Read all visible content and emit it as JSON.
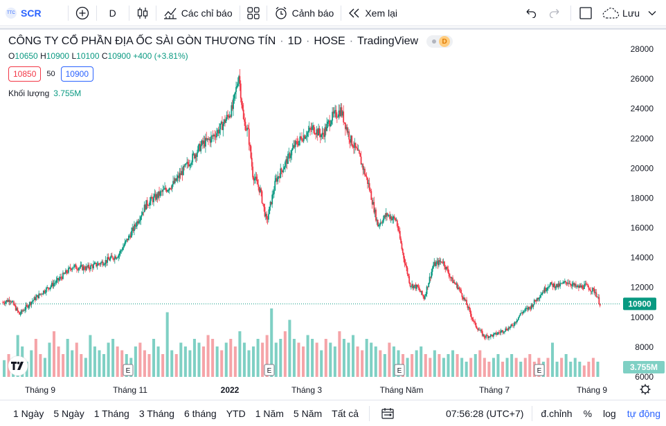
{
  "toolbar": {
    "symbol": "SCR",
    "symbol_logo_text": "TTC",
    "interval": "D",
    "indicators_label": "Các chỉ báo",
    "alert_label": "Cảnh báo",
    "replay_label": "Xem lại",
    "save_label": "Lưu"
  },
  "legend": {
    "company": "CÔNG TY CỔ PHẦN ĐỊA ỐC SÀI GÒN THƯƠNG TÍN",
    "interval": "1D",
    "exchange": "HOSE",
    "source": "TradingView",
    "badge": "D",
    "ohlc": {
      "o_label": "O",
      "o": "10650",
      "h_label": "H",
      "h": "10900",
      "l_label": "L",
      "l": "10100",
      "c_label": "C",
      "c": "10900",
      "change": "+400 (+3.81%)"
    },
    "bid": "10850",
    "spread": "50",
    "ask": "10900",
    "volume_label": "Khối lượng",
    "volume": "3.755M"
  },
  "colors": {
    "up": "#089981",
    "down": "#f23645",
    "up_vol": "#7fd0c4",
    "down_vol": "#f5a4a8",
    "accent": "#2962ff"
  },
  "chart_data": {
    "type": "candlestick",
    "title": "CÔNG TY CỔ PHẦN ĐỊA ỐC SÀI GÒN THƯƠNG TÍN · 1D · HOSE",
    "ylim": [
      6000,
      29000
    ],
    "y_ticks": [
      "28000",
      "26000",
      "24000",
      "22000",
      "20000",
      "18000",
      "16000",
      "14000",
      "12000",
      "10000",
      "8000",
      "6000"
    ],
    "x_ticks": [
      "Tháng 9",
      "Tháng 11",
      "2022",
      "Tháng 3",
      "Tháng Năm",
      "Tháng 7",
      "Tháng 9"
    ],
    "last_price": "10900",
    "last_volume": "3.755M",
    "events": [
      "E",
      "E",
      "E",
      "E"
    ],
    "price_path": [
      [
        0,
        11000
      ],
      [
        8,
        11200
      ],
      [
        18,
        10200
      ],
      [
        30,
        11000
      ],
      [
        45,
        11800
      ],
      [
        60,
        12500
      ],
      [
        75,
        13400
      ],
      [
        90,
        13300
      ],
      [
        100,
        13500
      ],
      [
        112,
        13800
      ],
      [
        125,
        14200
      ],
      [
        140,
        15800
      ],
      [
        155,
        17600
      ],
      [
        170,
        18300
      ],
      [
        185,
        19000
      ],
      [
        200,
        20300
      ],
      [
        215,
        21600
      ],
      [
        225,
        22000
      ],
      [
        235,
        22700
      ],
      [
        240,
        23200
      ],
      [
        248,
        24000
      ],
      [
        255,
        26300
      ],
      [
        260,
        23200
      ],
      [
        265,
        22400
      ],
      [
        270,
        19600
      ],
      [
        278,
        18500
      ],
      [
        285,
        16400
      ],
      [
        295,
        19200
      ],
      [
        305,
        20300
      ],
      [
        315,
        21500
      ],
      [
        325,
        22200
      ],
      [
        335,
        22700
      ],
      [
        345,
        22200
      ],
      [
        355,
        23400
      ],
      [
        365,
        23900
      ],
      [
        375,
        22000
      ],
      [
        385,
        20800
      ],
      [
        395,
        18900
      ],
      [
        405,
        16200
      ],
      [
        415,
        16900
      ],
      [
        425,
        16500
      ],
      [
        432,
        14300
      ],
      [
        440,
        12200
      ],
      [
        448,
        12000
      ],
      [
        455,
        11300
      ],
      [
        465,
        13500
      ],
      [
        475,
        13800
      ],
      [
        485,
        12500
      ],
      [
        492,
        12000
      ],
      [
        500,
        11000
      ],
      [
        510,
        9500
      ],
      [
        520,
        8700
      ],
      [
        530,
        8800
      ],
      [
        540,
        9100
      ],
      [
        550,
        9400
      ],
      [
        560,
        10300
      ],
      [
        570,
        10700
      ],
      [
        580,
        11500
      ],
      [
        590,
        12200
      ],
      [
        600,
        12100
      ],
      [
        610,
        12400
      ],
      [
        620,
        12000
      ],
      [
        630,
        12100
      ],
      [
        640,
        11700
      ],
      [
        645,
        10900
      ]
    ],
    "volumes": [
      0.22,
      0.3,
      0.25,
      0.55,
      0.4,
      0.2,
      0.35,
      0.5,
      0.3,
      0.25,
      0.45,
      0.6,
      0.4,
      0.3,
      0.5,
      0.35,
      0.45,
      0.3,
      0.25,
      0.55,
      0.4,
      0.35,
      0.3,
      0.45,
      0.5,
      0.4,
      0.35,
      0.3,
      0.25,
      0.4,
      0.45,
      0.35,
      0.3,
      0.5,
      0.4,
      0.3,
      0.85,
      0.35,
      0.3,
      0.45,
      0.4,
      0.35,
      0.5,
      0.45,
      0.4,
      0.55,
      0.5,
      0.4,
      0.35,
      0.45,
      0.5,
      0.4,
      0.6,
      0.45,
      0.35,
      0.4,
      0.5,
      0.45,
      0.55,
      0.9,
      0.45,
      0.5,
      0.6,
      0.75,
      0.5,
      0.45,
      0.4,
      0.55,
      0.5,
      0.45,
      0.35,
      0.5,
      0.45,
      0.4,
      0.6,
      0.5,
      0.45,
      0.55,
      0.4,
      0.35,
      0.5,
      0.45,
      0.4,
      0.35,
      0.3,
      0.45,
      0.4,
      0.35,
      0.3,
      0.25,
      0.3,
      0.35,
      0.4,
      0.3,
      0.25,
      0.35,
      0.3,
      0.25,
      0.3,
      0.35,
      0.3,
      0.25,
      0.2,
      0.25,
      0.3,
      0.35,
      0.25,
      0.2,
      0.25,
      0.3,
      0.2,
      0.25,
      0.3,
      0.25,
      0.2,
      0.25,
      0.3,
      0.2,
      0.25,
      0.2,
      0.25,
      0.45,
      0.2,
      0.25,
      0.3,
      0.2,
      0.25,
      0.2,
      0.15,
      0.2,
      0.25,
      0.2
    ]
  },
  "bottom_bar": {
    "ranges": [
      "1 Ngày",
      "5 Ngày",
      "1 Tháng",
      "3 Tháng",
      "6 tháng",
      "YTD",
      "1 Năm",
      "5 Năm",
      "Tất cả"
    ],
    "time": "07:56:28 (UTC+7)",
    "adjust": "đ.chỉnh",
    "percent": "%",
    "log": "log",
    "auto": "tự động"
  }
}
